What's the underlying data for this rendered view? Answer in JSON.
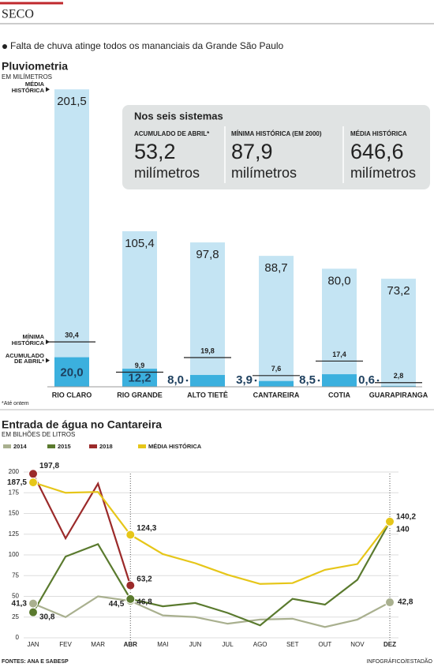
{
  "header": "SECO",
  "subtitle": "Falta de chuva atinge todos os mananciais da Grande São Paulo",
  "summary": {
    "title": "Nos seis sistemas",
    "items": [
      {
        "label": "ACUMULADO DE ABRIL*",
        "value": "53,2",
        "unit": "milímetros"
      },
      {
        "label": "MÍNIMA HISTÓRICA (EM 2000)",
        "value": "87,9",
        "unit": "milímetros"
      },
      {
        "label": "MÉDIA HISTÓRICA",
        "value": "646,6",
        "unit": "milímetros"
      }
    ]
  },
  "note": "*Até ontem",
  "sources": "FONTES: ANA E SABESP",
  "credit": "INFOGRÁFICO/ESTADÃO",
  "chart_data": [
    {
      "type": "bar",
      "title": "Pluviometria",
      "subtitle": "EM MILÍMETROS",
      "categories": [
        "RIO CLARO",
        "RIO GRANDE",
        "ALTO TIETÊ",
        "CANTAREIRA",
        "COTIA",
        "GUARAPIRANGA"
      ],
      "series": [
        {
          "name": "MÉDIA HISTÓRICA",
          "color": "#c4e4f3",
          "values": [
            201.5,
            105.4,
            97.8,
            88.7,
            80.0,
            73.2
          ],
          "value_labels": [
            "201,5",
            "105,4",
            "97,8",
            "88,7",
            "80,0",
            "73,2"
          ]
        },
        {
          "name": "MÍNIMA HISTÓRICA",
          "color": "#222222",
          "values": [
            30.4,
            9.9,
            19.8,
            7.6,
            17.4,
            2.8
          ],
          "value_labels": [
            "30,4",
            "9,9",
            "19,8",
            "7,6",
            "17,4",
            "2,8"
          ]
        },
        {
          "name": "ACUMULADO DE ABRIL*",
          "color": "#3bb0de",
          "values": [
            20.0,
            12.2,
            8.0,
            3.9,
            8.5,
            0.6
          ],
          "value_labels": [
            "20,0",
            "12,2",
            "8,0",
            "3,9",
            "8,5",
            "0,6"
          ]
        }
      ]
    },
    {
      "type": "line",
      "title": "Entrada de água no Cantareira",
      "subtitle": "EM BILHÕES DE LITROS",
      "categories": [
        "JAN",
        "FEV",
        "MAR",
        "ABR",
        "MAI",
        "JUN",
        "JUL",
        "AGO",
        "SET",
        "OUT",
        "NOV",
        "DEZ"
      ],
      "ylim": [
        0,
        200
      ],
      "yticks": [
        0,
        25,
        50,
        75,
        100,
        125,
        150,
        175,
        200
      ],
      "grid": true,
      "series": [
        {
          "name": "2014",
          "color": "#a9b08f",
          "values": [
            41.3,
            25,
            50,
            44.5,
            27,
            25,
            17,
            22,
            23,
            13,
            22,
            42.8
          ],
          "value_labels": [
            "41,3",
            null,
            null,
            "44,5",
            null,
            null,
            null,
            null,
            null,
            null,
            null,
            "42,8"
          ]
        },
        {
          "name": "2015",
          "color": "#5a7a2e",
          "values": [
            30.8,
            98,
            113,
            46.8,
            38,
            42,
            30,
            15,
            47,
            40,
            70,
            140
          ],
          "value_labels": [
            "30,8",
            null,
            null,
            "46,8",
            null,
            null,
            null,
            null,
            null,
            null,
            null,
            "140"
          ]
        },
        {
          "name": "2018",
          "color": "#9b2a2a",
          "values": [
            197.8,
            120,
            186,
            63.2,
            null,
            null,
            null,
            null,
            null,
            null,
            null,
            null
          ],
          "value_labels": [
            "197,8",
            null,
            null,
            "63,2",
            null,
            null,
            null,
            null,
            null,
            null,
            null,
            null
          ]
        },
        {
          "name": "MÉDIA HISTÓRICA",
          "color": "#e6c619",
          "values": [
            187.5,
            175,
            176,
            124.3,
            101,
            90,
            76,
            65,
            66,
            82,
            89,
            140.2
          ],
          "value_labels": [
            "187,5",
            null,
            null,
            "124,3",
            null,
            null,
            null,
            null,
            null,
            null,
            null,
            "140,2"
          ]
        }
      ]
    }
  ]
}
